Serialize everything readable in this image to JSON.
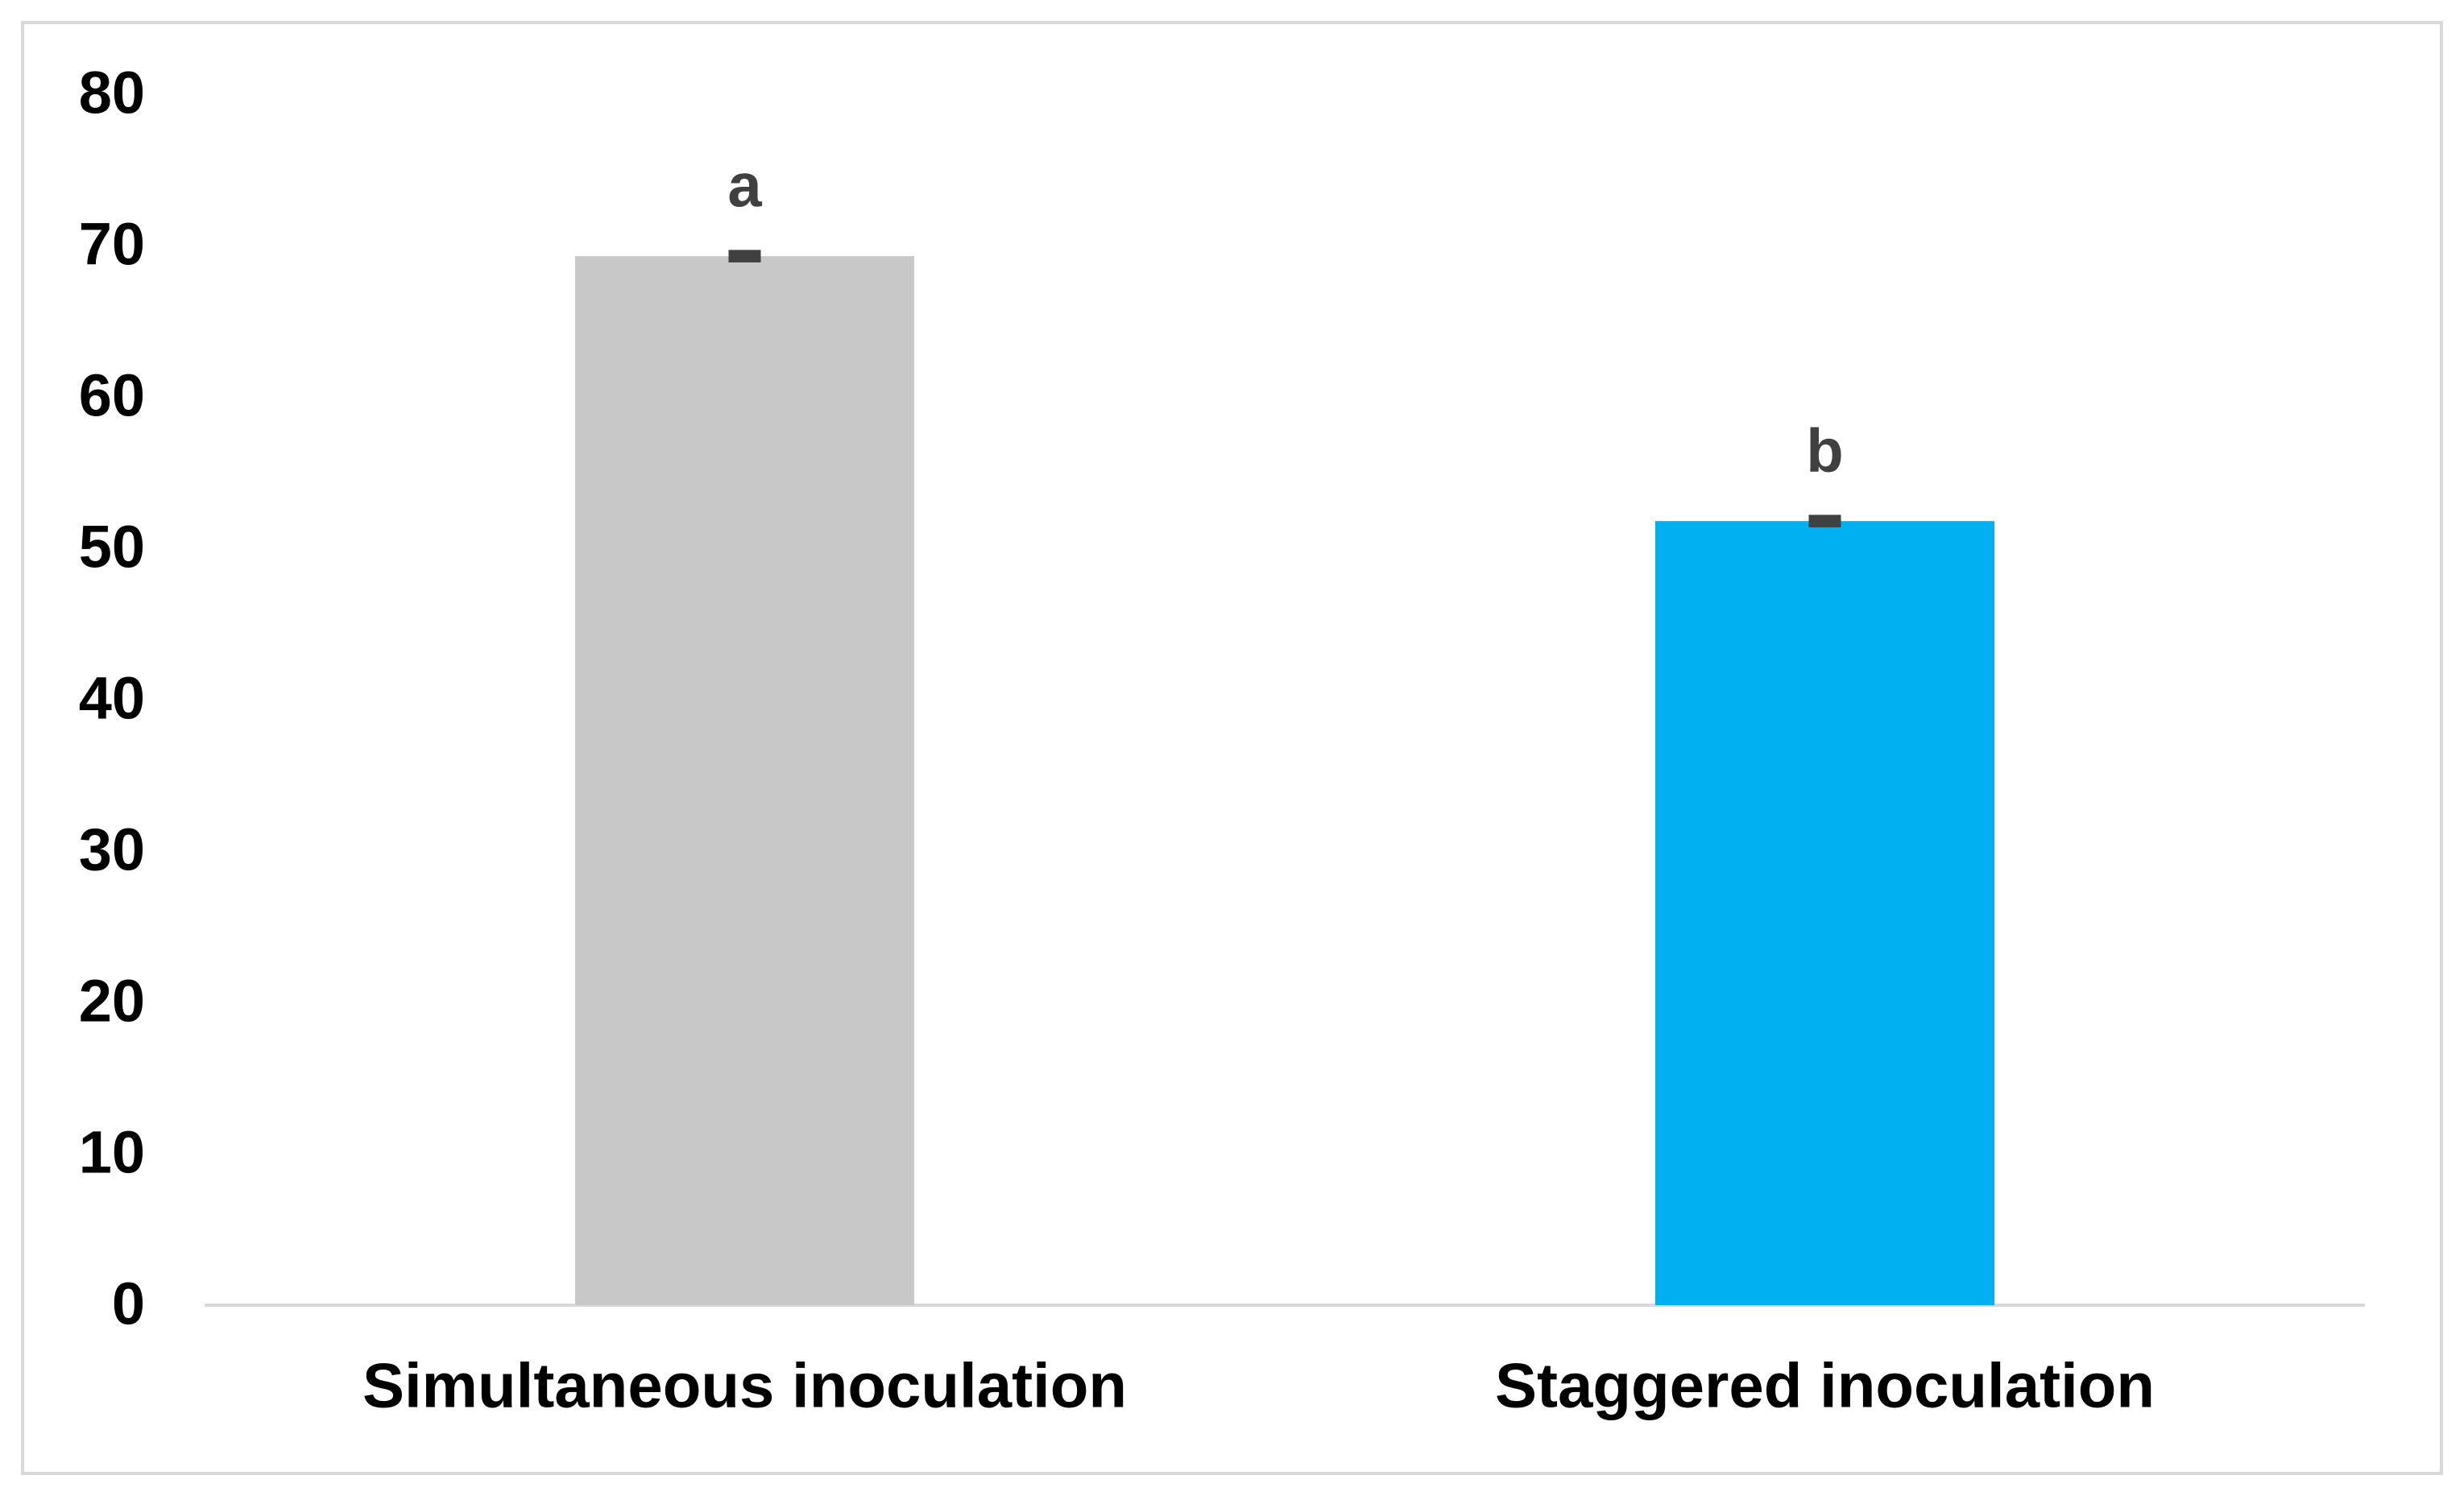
{
  "chart_data": {
    "type": "bar",
    "categories": [
      "Simultaneous inoculation",
      "Staggered inoculation"
    ],
    "values": [
      69.3,
      51.8
    ],
    "errors": [
      0.2,
      0.2
    ],
    "annotations": [
      "a",
      "b"
    ],
    "colors": [
      "#c8c8c8",
      "#00b0f0"
    ],
    "ylim": [
      0,
      80
    ],
    "yticks": [
      0,
      10,
      20,
      30,
      40,
      50,
      60,
      70,
      80
    ],
    "grid": false
  }
}
